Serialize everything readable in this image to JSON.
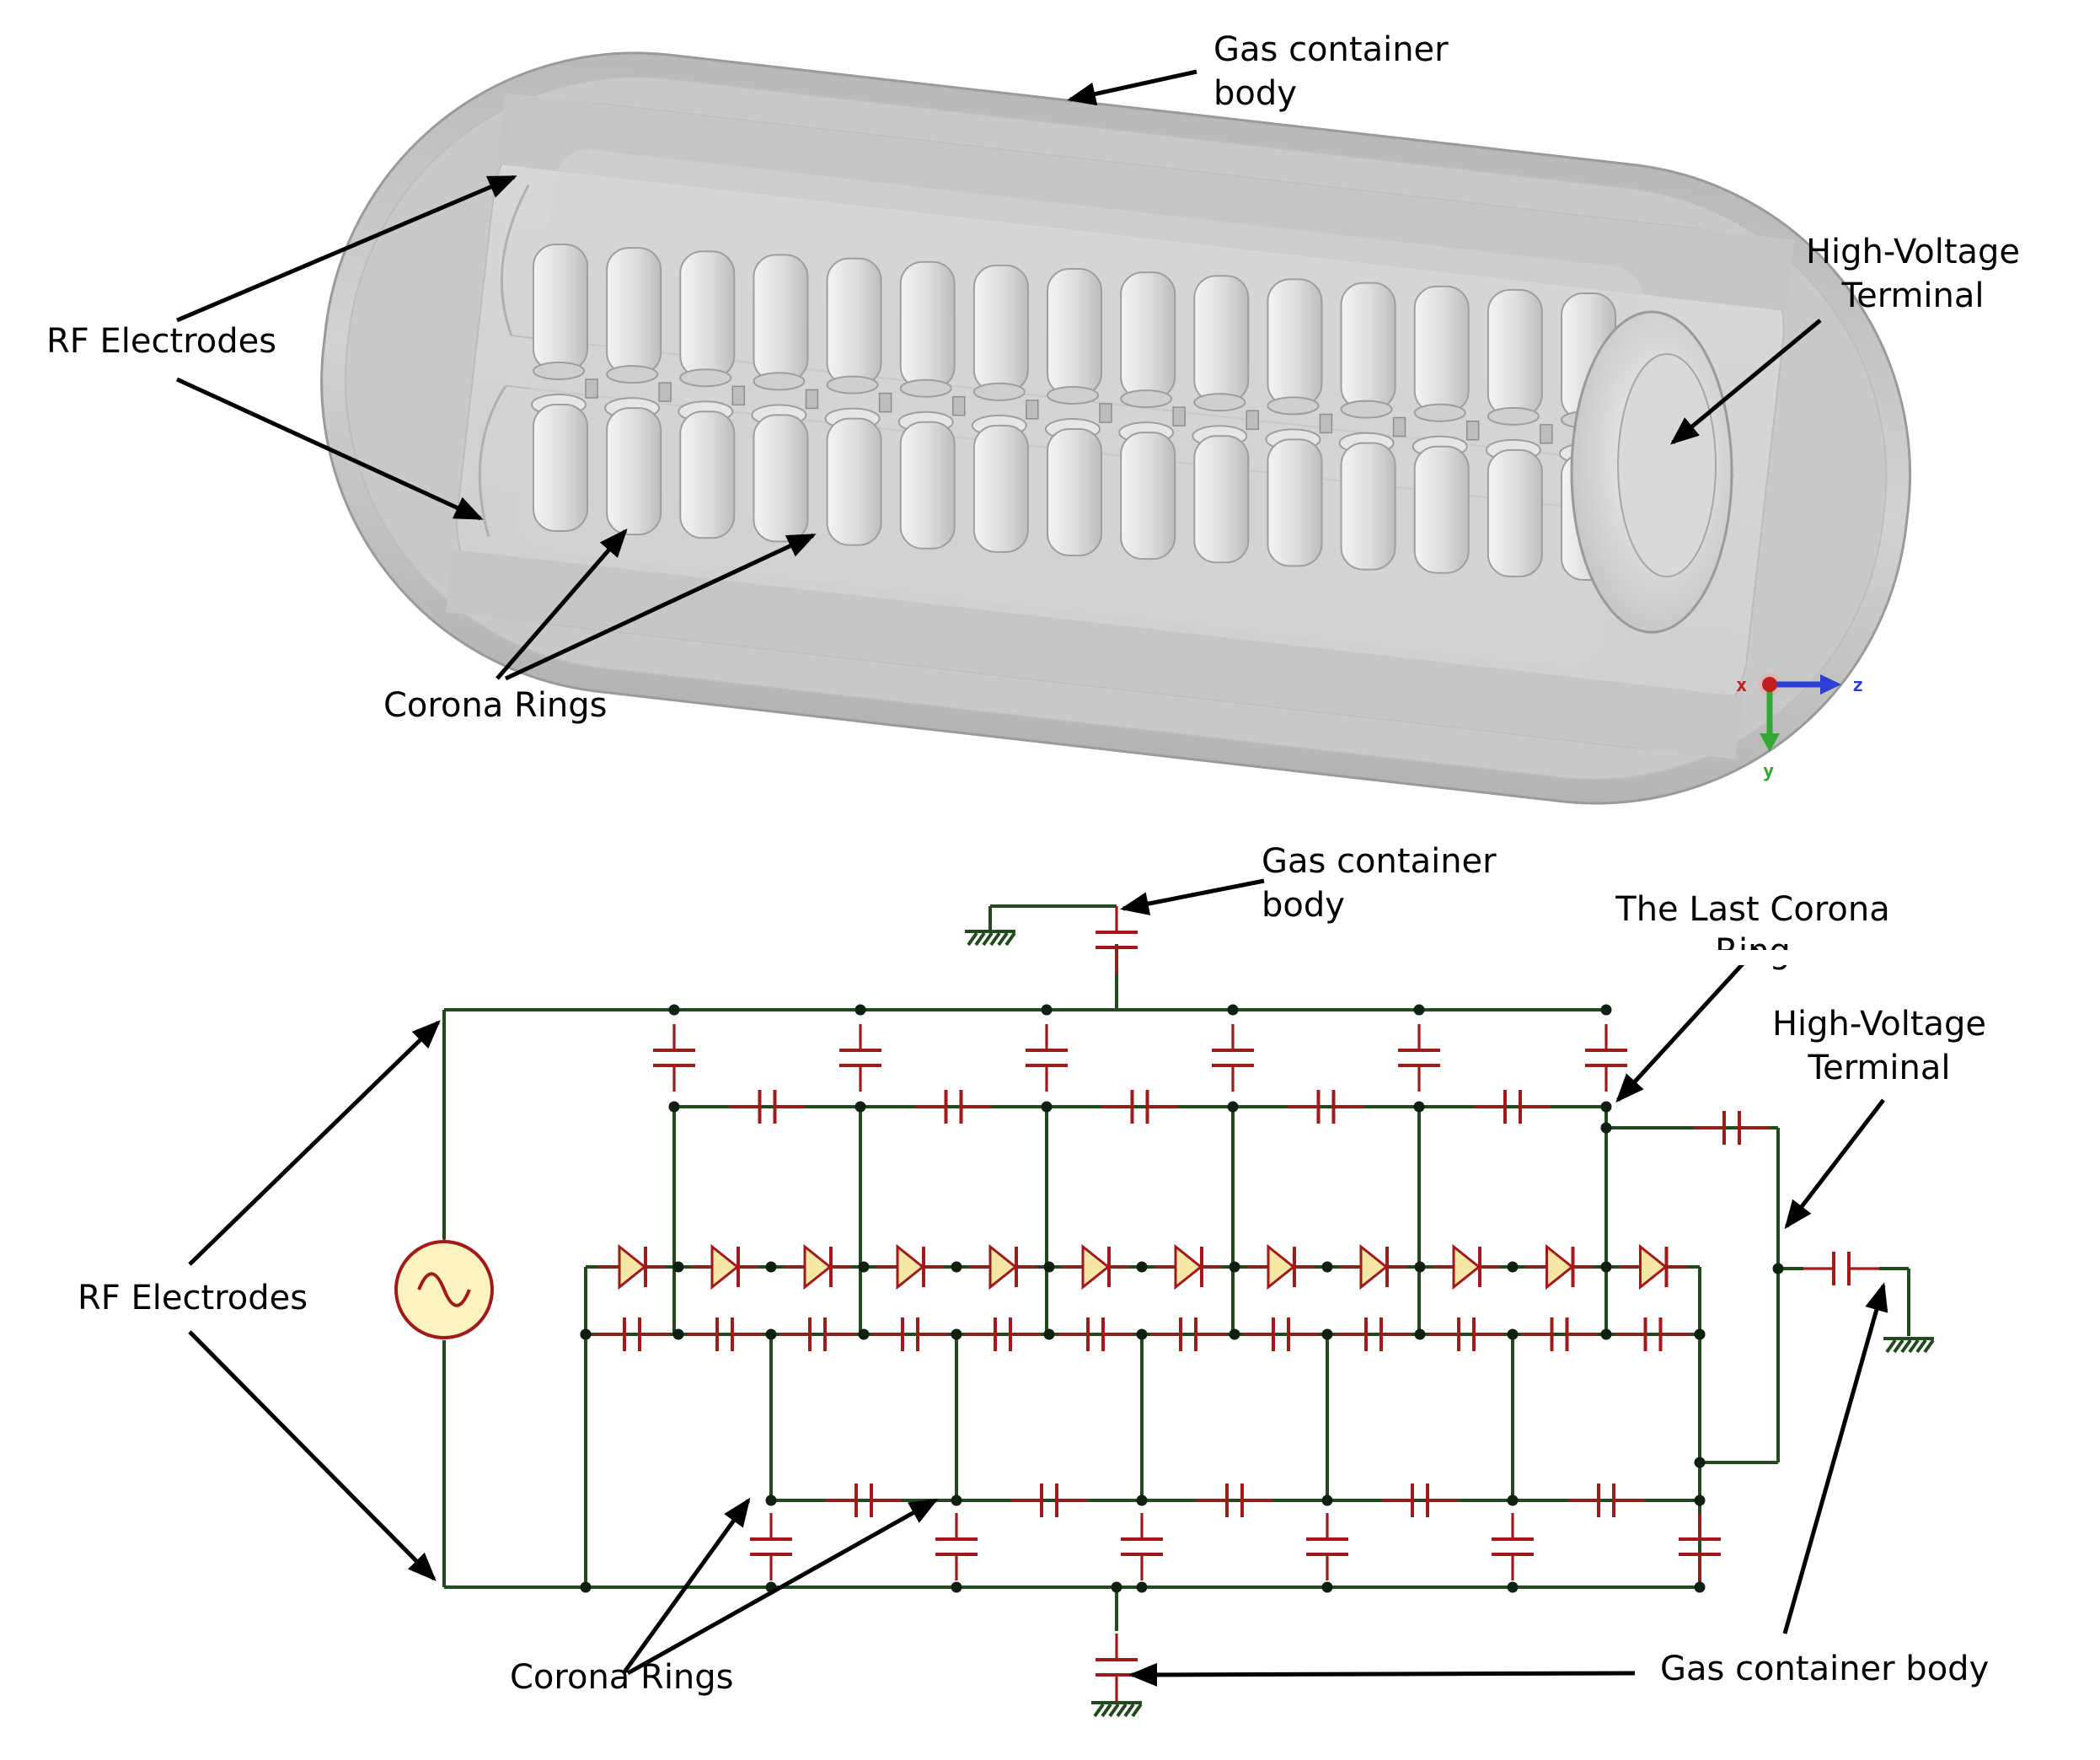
{
  "model_labels": {
    "gas_container": [
      "Gas    container",
      "body"
    ],
    "rf_electrodes": "RF Electrodes",
    "high_voltage_terminal": [
      "High-Voltage",
      "Terminal"
    ],
    "corona_rings": "Corona Rings"
  },
  "axis_triad": {
    "x": "x",
    "y": "y",
    "z": "z"
  },
  "circuit_labels": {
    "gas_container_top": [
      "Gas    container",
      "body"
    ],
    "last_corona_ring": [
      "The Last Corona",
      "Ring"
    ],
    "high_voltage_terminal": [
      "High-Voltage",
      "Terminal"
    ],
    "rf_electrodes": "RF Electrodes",
    "corona_rings": "Corona Rings",
    "gas_container_bottom": "Gas container body"
  },
  "colors": {
    "wire": "#224a1e",
    "component": "#a01a1a",
    "diode_fill": "#f6e7a6",
    "source_fill": "#fdf3c0",
    "vessel_grey": "#c8c8c8"
  },
  "icons": {
    "ac_source": "ac-source-icon",
    "ground": "ground-icon",
    "diode": "diode-icon",
    "capacitor": "capacitor-icon"
  }
}
